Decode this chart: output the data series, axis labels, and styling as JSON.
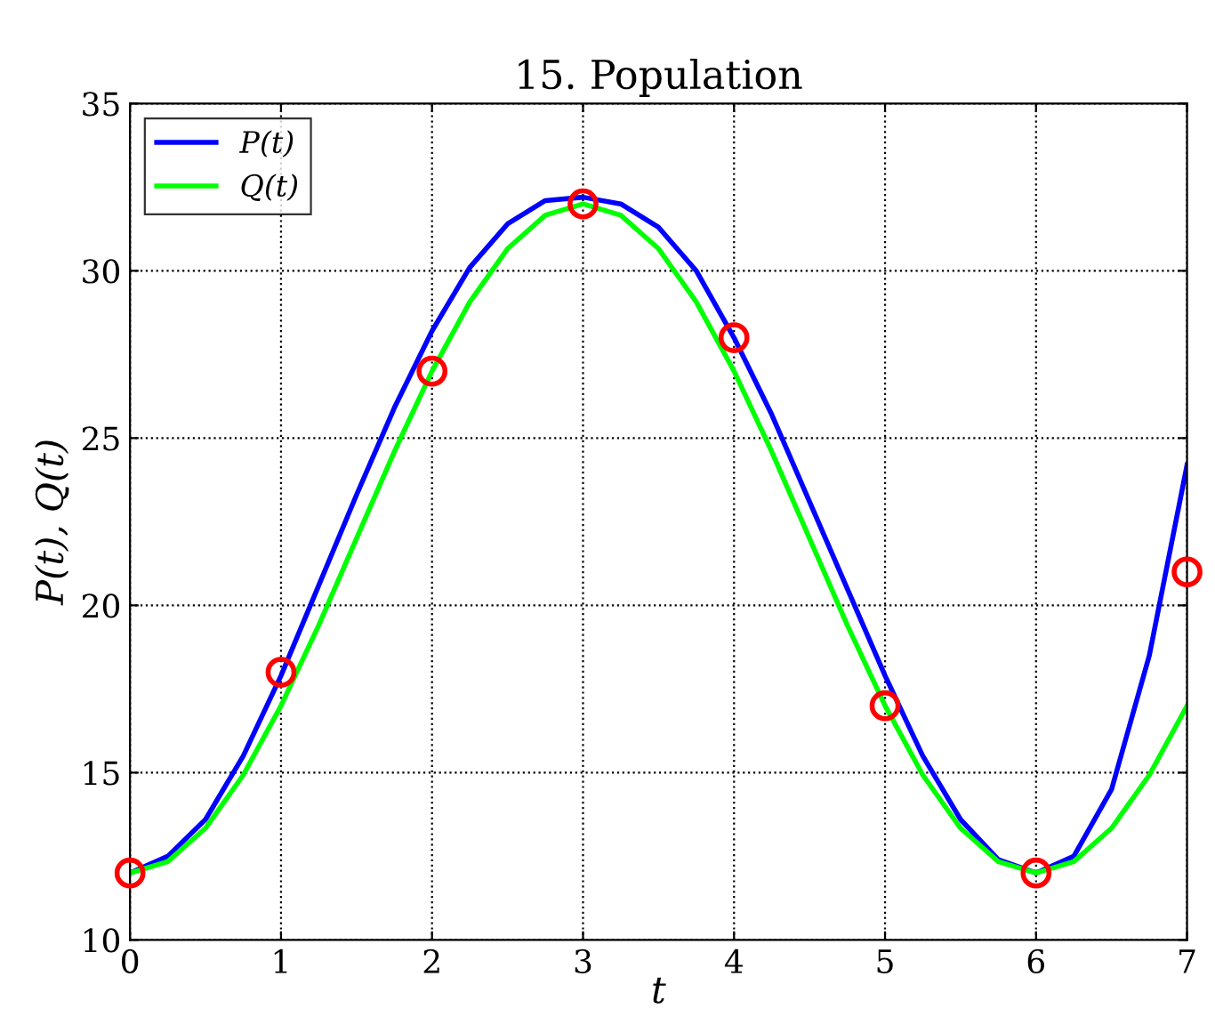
{
  "chart_data": {
    "type": "line",
    "title": "15. Population",
    "xlabel": "t",
    "ylabel": "P(t), Q(t)",
    "xlim": [
      0,
      7
    ],
    "ylim": [
      10,
      35
    ],
    "xticks": [
      0,
      1,
      2,
      3,
      4,
      5,
      6,
      7
    ],
    "yticks": [
      10,
      15,
      20,
      25,
      30,
      35
    ],
    "grid": true,
    "legend": "top left",
    "series": [
      {
        "name": "P(t)",
        "color": "#0000ff",
        "marker": "none",
        "line_style": "solid",
        "x": [
          0,
          0.25,
          0.5,
          0.75,
          1,
          1.25,
          1.5,
          1.75,
          2,
          2.25,
          2.5,
          2.75,
          3,
          3.25,
          3.5,
          3.75,
          4,
          4.25,
          4.5,
          4.75,
          5,
          5.25,
          5.5,
          5.75,
          6,
          6.25,
          6.5,
          6.75,
          7
        ],
        "values": [
          12,
          12.5,
          13.6,
          15.5,
          17.9,
          20.6,
          23.3,
          25.9,
          28.2,
          30.1,
          31.4,
          32.1,
          32.2,
          32.0,
          31.3,
          30.0,
          28.0,
          25.7,
          23.1,
          20.5,
          17.9,
          15.5,
          13.6,
          12.4,
          12.0,
          12.5,
          14.5,
          18.5,
          24.2
        ]
      },
      {
        "name": "Q(t)",
        "color": "#00ff00",
        "marker": "none",
        "line_style": "solid",
        "x": [
          0,
          0.25,
          0.5,
          0.75,
          1,
          1.25,
          1.5,
          1.75,
          2,
          2.25,
          2.5,
          2.75,
          3,
          3.25,
          3.5,
          3.75,
          4,
          4.25,
          4.5,
          4.75,
          5,
          5.25,
          5.5,
          5.75,
          6,
          6.25,
          6.5,
          6.75,
          7
        ],
        "values": [
          12,
          12.34,
          13.34,
          14.93,
          17,
          19.41,
          22,
          24.59,
          27,
          29.07,
          30.66,
          31.66,
          32,
          31.66,
          30.66,
          29.07,
          27,
          24.59,
          22,
          19.41,
          17,
          14.93,
          13.34,
          12.34,
          12,
          12.34,
          13.34,
          14.93,
          17
        ]
      },
      {
        "type": "scatter",
        "color": "#ff0000",
        "marker": "circle",
        "x": [
          0,
          1,
          2,
          3,
          4,
          5,
          6,
          7
        ],
        "values": [
          12,
          18,
          27,
          32,
          28,
          17,
          12,
          21
        ]
      }
    ]
  }
}
